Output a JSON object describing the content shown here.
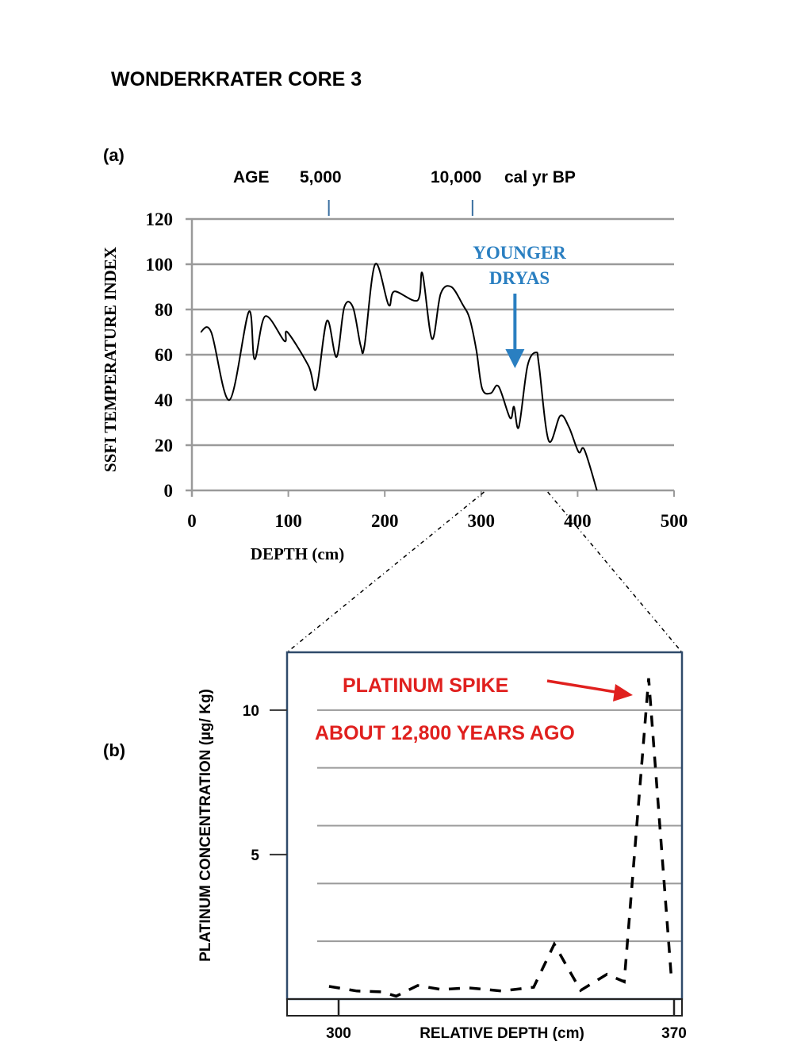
{
  "title": "WONDERKRATER CORE 3",
  "colors": {
    "annotation_blue": "#2a7fc1",
    "annotation_red": "#e0201e",
    "line": "#000000",
    "grid": "#9a9a9a",
    "frame": "#2f4a6a"
  },
  "chart_data": [
    {
      "panel_label": "(a)",
      "type": "line",
      "xlabel": "DEPTH (cm)",
      "ylabel": "SSFI TEMPERATURE INDEX",
      "xlim": [
        0,
        500
      ],
      "ylim": [
        0,
        120
      ],
      "xticks": [
        "0",
        "100",
        "200",
        "300",
        "400",
        "500"
      ],
      "yticks": [
        "0",
        "20",
        "40",
        "60",
        "80",
        "100",
        "120"
      ],
      "grid": "horizontal",
      "secondary_axis": {
        "label": "AGE",
        "ticks": [
          {
            "label": "5,000",
            "depth": 142
          },
          {
            "label": "10,000",
            "depth": 291
          }
        ],
        "unit": "cal yr BP"
      },
      "annotation": {
        "lines": [
          "YOUNGER",
          "DRYAS"
        ],
        "arrow_depth": 335,
        "arrow_to_value": 55
      },
      "x": [
        9,
        20,
        39,
        59,
        65,
        76,
        96,
        99,
        121,
        129,
        140,
        150,
        158,
        167,
        175,
        179,
        190,
        204,
        210,
        234,
        239,
        249,
        258,
        269,
        281,
        288,
        295,
        301,
        310,
        318,
        330,
        334,
        339,
        348,
        357,
        360,
        370,
        382,
        391,
        401,
        407,
        420
      ],
      "y": [
        70,
        70,
        40,
        79,
        58,
        77,
        66,
        70,
        55,
        45,
        75,
        59,
        81,
        81,
        64,
        64,
        100,
        82,
        88,
        84,
        96,
        67,
        87,
        90,
        82,
        76,
        62,
        45,
        43,
        46,
        32,
        37,
        28,
        55,
        61,
        55,
        22,
        33,
        28,
        17,
        18,
        0
      ],
      "zoom_range": [
        303,
        369
      ]
    },
    {
      "panel_label": "(b)",
      "type": "line",
      "line_style": "dashed",
      "xlabel": "RELATIVE DEPTH (cm)",
      "ylabel": "PLATINUM CONCENTRATION   (µg/ Kg)",
      "xlim": [
        300,
        370
      ],
      "ylim": [
        0,
        12
      ],
      "xticks": [
        "300",
        "370"
      ],
      "yticks": [
        "5",
        "10"
      ],
      "grid": "horizontal",
      "annotations": [
        "PLATINUM SPIKE",
        "ABOUT 12,800 YEARS AGO"
      ],
      "x": [
        298,
        303.8,
        309,
        312,
        316.5,
        321.5,
        327,
        334,
        340.7,
        345,
        350.5,
        356,
        359.6,
        364.7,
        369.5
      ],
      "y": [
        0.44,
        0.28,
        0.25,
        0.1,
        0.47,
        0.33,
        0.39,
        0.28,
        0.41,
        1.9,
        0.3,
        0.86,
        0.6,
        11.1,
        0.6
      ]
    }
  ]
}
